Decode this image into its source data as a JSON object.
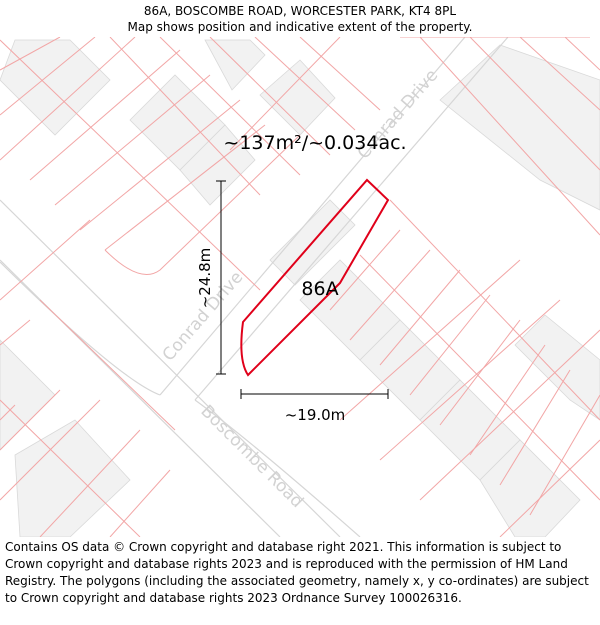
{
  "header": {
    "address": "86A, BOSCOMBE ROAD, WORCESTER PARK, KT4 8PL",
    "subtitle": "Map shows position and indicative extent of the property."
  },
  "map": {
    "area_label": "~137m²/~0.034ac.",
    "plot_label": "86A",
    "height_dimension": "~24.8m",
    "width_dimension": "~19.0m",
    "roads": {
      "conrad_upper": "Conrad Drive",
      "conrad_lower": "Conrad Drive",
      "boscombe": "Boscombe Road"
    },
    "colors": {
      "plot_outline": "#e0001a",
      "parcel_lines": "#f2a6a6",
      "building_fill": "#f2f2f2",
      "road_edge": "#d6d6d6",
      "road_text": "#d2d2d2"
    }
  },
  "footer": {
    "text": "Contains OS data © Crown copyright and database right 2021. This information is subject to Crown copyright and database rights 2023 and is reproduced with the permission of HM Land Registry. The polygons (including the associated geometry, namely x, y co-ordinates) are subject to Crown copyright and database rights 2023 Ordnance Survey 100026316."
  }
}
